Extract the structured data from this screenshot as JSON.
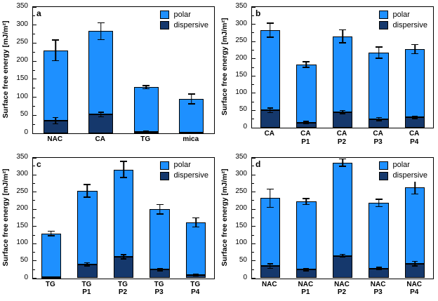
{
  "figure": {
    "background": "#ffffff"
  },
  "colors": {
    "polar": "#1e90ff",
    "dispersive": "#15386c",
    "axis": "#000000",
    "error_bar": "#000000"
  },
  "ylabel": "Surface free energy [mJ/m²]",
  "legend_labels": [
    "polar",
    "dispersive"
  ],
  "chart_data": [
    {
      "type": "bar",
      "stacked": true,
      "panel_label": "a",
      "title": "",
      "xlabel": "",
      "ylabel": "Surface free energy [mJ/m²]",
      "categories": [
        "NAC",
        "CA",
        "TG",
        "mica"
      ],
      "series": [
        {
          "name": "dispersive",
          "values": [
            35,
            52,
            4,
            2
          ],
          "errors": [
            10,
            8,
            3,
            2
          ]
        },
        {
          "name": "polar",
          "values": [
            195,
            231,
            124,
            93
          ]
        }
      ],
      "totals": [
        230,
        283,
        128,
        95
      ],
      "total_errors": [
        30,
        25,
        6,
        15
      ],
      "ylim": [
        0,
        350
      ],
      "ytick_step": 50,
      "grid": false,
      "legend": [
        "polar",
        "dispersive"
      ],
      "legend_position": "top-right"
    },
    {
      "type": "bar",
      "stacked": true,
      "panel_label": "b",
      "title": "",
      "xlabel": "",
      "ylabel": "Surface free energy [mJ/m²]",
      "categories": [
        "CA",
        "CA\nP1",
        "CA\nP2",
        "CA\nP3",
        "CA\nP4"
      ],
      "series": [
        {
          "name": "dispersive",
          "values": [
            50,
            15,
            45,
            25,
            30
          ],
          "errors": [
            8,
            5,
            6,
            6,
            5
          ]
        },
        {
          "name": "polar",
          "values": [
            233,
            168,
            220,
            193,
            198
          ]
        }
      ],
      "totals": [
        283,
        183,
        265,
        218,
        228
      ],
      "total_errors": [
        22,
        10,
        20,
        18,
        15
      ],
      "ylim": [
        0,
        350
      ],
      "ytick_step": 50,
      "grid": false,
      "legend": [
        "polar",
        "dispersive"
      ],
      "legend_position": "top-right"
    },
    {
      "type": "bar",
      "stacked": true,
      "panel_label": "c",
      "title": "",
      "xlabel": "",
      "ylabel": "Surface free energy [mJ/m²]",
      "categories": [
        "TG",
        "TG\nP1",
        "TG\nP2",
        "TG\nP3",
        "TG\nP4"
      ],
      "series": [
        {
          "name": "dispersive",
          "values": [
            4,
            40,
            62,
            25,
            10
          ],
          "errors": [
            2,
            6,
            8,
            5,
            4
          ]
        },
        {
          "name": "polar",
          "values": [
            126,
            213,
            253,
            175,
            152
          ]
        }
      ],
      "totals": [
        130,
        253,
        315,
        200,
        162
      ],
      "total_errors": [
        8,
        20,
        25,
        15,
        15
      ],
      "ylim": [
        0,
        350
      ],
      "ytick_step": 50,
      "grid": false,
      "legend": [
        "polar",
        "dispersive"
      ],
      "legend_position": "top-right"
    },
    {
      "type": "bar",
      "stacked": true,
      "panel_label": "d",
      "title": "",
      "xlabel": "",
      "ylabel": "Surface free energy [mJ/m²]",
      "categories": [
        "NAC",
        "NAC\nP1",
        "NAC\nP2",
        "NAC\nP3",
        "NAC\nP4"
      ],
      "series": [
        {
          "name": "dispersive",
          "values": [
            35,
            25,
            65,
            28,
            42
          ],
          "errors": [
            8,
            5,
            6,
            5,
            8
          ]
        },
        {
          "name": "polar",
          "values": [
            197,
            197,
            270,
            190,
            221
          ]
        }
      ],
      "totals": [
        232,
        222,
        335,
        218,
        263
      ],
      "total_errors": [
        28,
        10,
        12,
        12,
        20
      ],
      "ylim": [
        0,
        350
      ],
      "ytick_step": 50,
      "grid": false,
      "legend": [
        "polar",
        "dispersive"
      ],
      "legend_position": "top-right"
    }
  ]
}
